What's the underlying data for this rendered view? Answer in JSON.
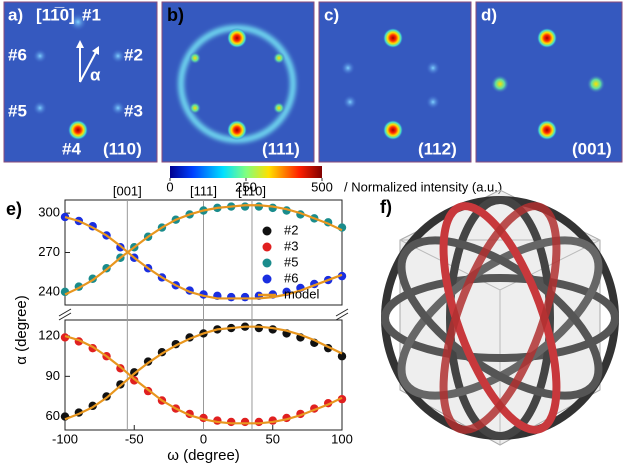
{
  "panels": {
    "a": {
      "label": "a)",
      "direction": "[11̅0]",
      "spots": [
        "#1",
        "#2",
        "#3",
        "#4",
        "#5",
        "#6"
      ],
      "angle": "α",
      "plane": "(110)"
    },
    "b": {
      "label": "b)",
      "plane": "(111)"
    },
    "c": {
      "label": "c)",
      "plane": "(112)"
    },
    "d": {
      "label": "d)",
      "plane": "(001)"
    },
    "f": {
      "label": "f)"
    }
  },
  "colorbar": {
    "lim": [
      0,
      500
    ],
    "ticks": [
      0,
      250,
      500
    ],
    "label": "/ Normalized intensity (a.u.)"
  },
  "chart_data": {
    "type": "scatter",
    "panel_label": "e)",
    "xlabel": "ω (degree)",
    "ylabel": "α (degree)",
    "x": [
      -100,
      -90,
      -80,
      -70,
      -60,
      -50,
      -40,
      -30,
      -20,
      -10,
      0,
      10,
      20,
      30,
      40,
      50,
      60,
      70,
      80,
      90,
      100
    ],
    "xlim": [
      -100,
      100
    ],
    "xticks": [
      -100,
      -50,
      0,
      50,
      100
    ],
    "y_segments": [
      {
        "ylim": [
          50,
          132
        ],
        "yticks": [
          60,
          90,
          120
        ]
      },
      {
        "ylim": [
          230,
          310
        ],
        "yticks": [
          240,
          270,
          300
        ]
      }
    ],
    "top_ticks": [
      {
        "value": -55,
        "label": "[001]"
      },
      {
        "value": 0,
        "label": "[111]"
      },
      {
        "value": 35,
        "label": "[110]"
      }
    ],
    "series": [
      {
        "name": "#2",
        "color": "#111111",
        "values": [
          60,
          63,
          68,
          75,
          84,
          93,
          101,
          108,
          114,
          119,
          122,
          125,
          126,
          127,
          126,
          125,
          122,
          119,
          115,
          111,
          105
        ]
      },
      {
        "name": "#3",
        "color": "#e02020",
        "values": [
          119,
          116,
          111,
          105,
          96,
          87,
          79,
          72,
          66,
          62,
          59,
          57,
          56,
          56,
          56,
          57,
          59,
          62,
          66,
          70,
          73
        ]
      },
      {
        "name": "#5",
        "color": "#1a8c8c",
        "values": [
          240,
          244,
          250,
          258,
          266,
          274,
          282,
          289,
          295,
          299,
          302,
          304,
          305,
          305,
          305,
          304,
          302,
          299,
          296,
          293,
          289
        ]
      },
      {
        "name": "#6",
        "color": "#1a2ee0",
        "values": [
          297,
          294,
          290,
          283,
          274,
          266,
          258,
          251,
          245,
          241,
          238,
          237,
          236,
          236,
          237,
          238,
          240,
          243,
          246,
          249,
          252
        ]
      },
      {
        "name": "model",
        "color": "#e8961e",
        "lines": [
          [
            58,
            62,
            67,
            74,
            83,
            92,
            100,
            107,
            113,
            118,
            122,
            125,
            126,
            127,
            127,
            126,
            124,
            121,
            117,
            112,
            107
          ],
          [
            120,
            117,
            112,
            105,
            97,
            88,
            80,
            72,
            66,
            61,
            58,
            56,
            55,
            55,
            55,
            56,
            58,
            61,
            65,
            69,
            74
          ],
          [
            238,
            243,
            249,
            257,
            266,
            274,
            282,
            289,
            295,
            299,
            302,
            304,
            305,
            306,
            306,
            305,
            303,
            300,
            296,
            292,
            287
          ],
          [
            297,
            294,
            289,
            283,
            275,
            266,
            258,
            251,
            245,
            240,
            237,
            235,
            235,
            235,
            235,
            236,
            238,
            241,
            245,
            249,
            253
          ]
        ]
      }
    ]
  }
}
